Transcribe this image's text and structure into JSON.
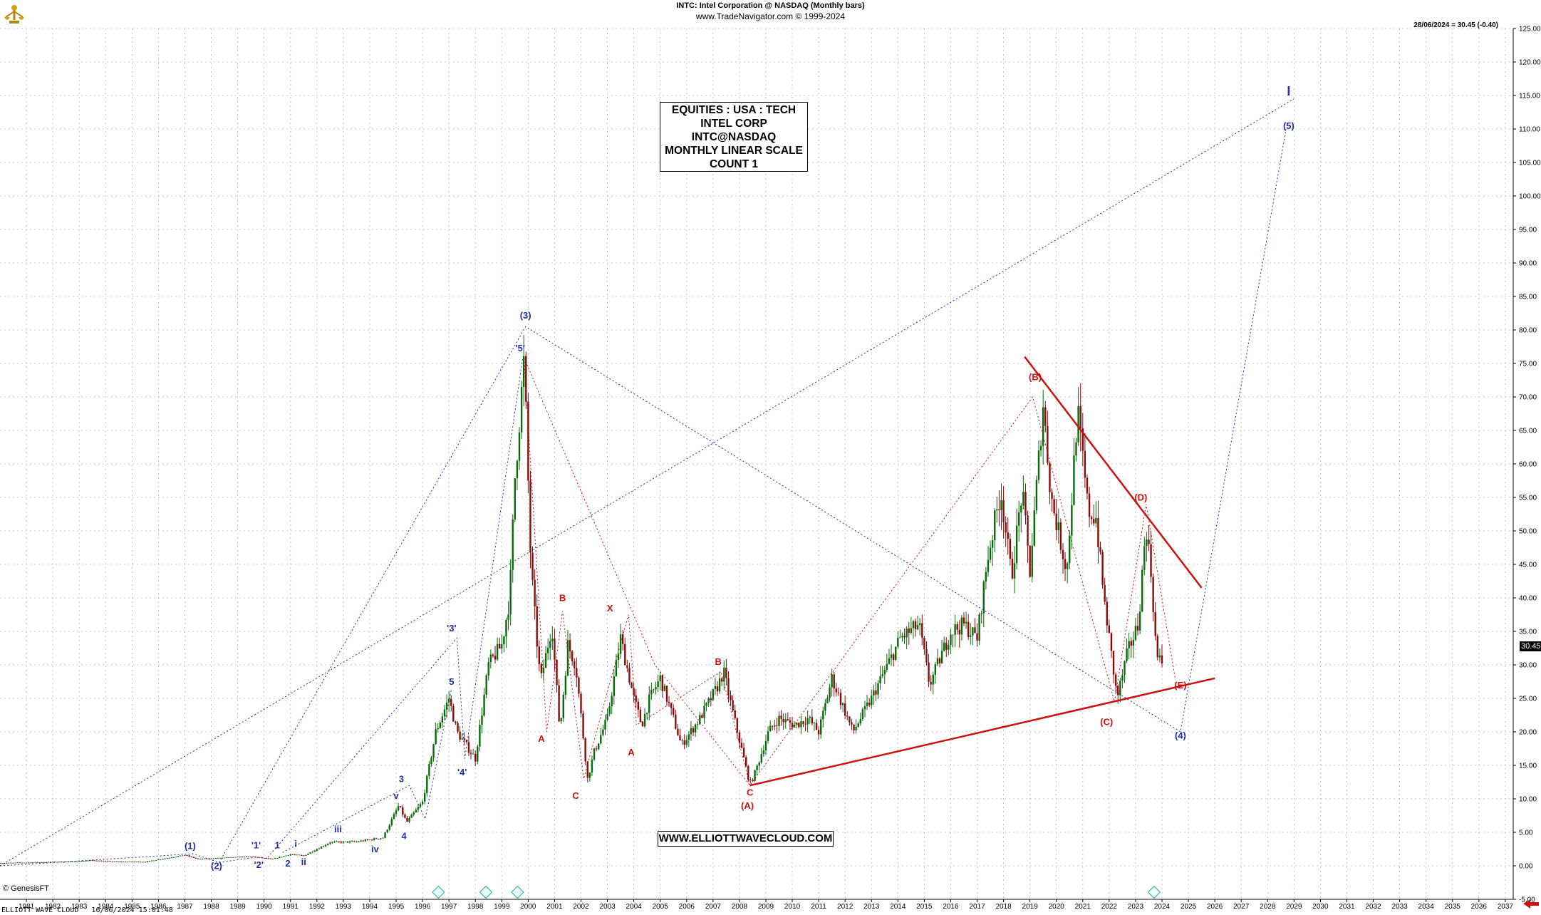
{
  "header": {
    "title": "INTC:  Intel Corporation @ NASDAQ  (Monthly bars)",
    "source": "www.TradeNavigator.com © 1999-2024",
    "last_quote": "28/06/2024 = 30.45 (-0.40)"
  },
  "info_box": {
    "lines": [
      "EQUITIES : USA : TECH",
      "INTEL CORP",
      "INTC@NASDAQ",
      "MONTHLY LINEAR SCALE",
      "COUNT 1"
    ]
  },
  "website": "WWW.ELLIOTTWAVECLOUD.COM",
  "copyright": "© GenesisFT",
  "footer": "ELLIOTT WAVE CLOUD   16/06/2024 15:01:48",
  "price_tag": "30.45",
  "colors": {
    "blue": "#1f2ea6",
    "red": "#cc1111",
    "grid": "#b8b8b8",
    "candle": "#1a1a1a",
    "up": "#0a6a0a",
    "down": "#8a0a0a"
  },
  "chart_data": {
    "type": "line",
    "symbol": "INTC",
    "scale": "linear",
    "x_axis": {
      "range": [
        1980.5,
        2037.8
      ],
      "ticks": [
        "1981",
        "1982",
        "1983",
        "1984",
        "1985",
        "1986",
        "1987",
        "1988",
        "1989",
        "1990",
        "1991",
        "1992",
        "1993",
        "1994",
        "1995",
        "1996",
        "1997",
        "1998",
        "1999",
        "2000",
        "2001",
        "2002",
        "2003",
        "2004",
        "2005",
        "2006",
        "2007",
        "2008",
        "2009",
        "2010",
        "2011",
        "2012",
        "2013",
        "2014",
        "2015",
        "2016",
        "2017",
        "2018",
        "2019",
        "2020",
        "2021",
        "2022",
        "2023",
        "2024",
        "2025",
        "2026",
        "2027",
        "2028",
        "2029",
        "2030",
        "2031",
        "2032",
        "2033",
        "2034",
        "2035",
        "2036",
        "2037"
      ]
    },
    "y_axis": {
      "range": [
        -5,
        125
      ],
      "ticks": [
        "125.00",
        "120.00",
        "115.00",
        "110.00",
        "105.00",
        "100.00",
        "95.00",
        "90.00",
        "85.00",
        "80.00",
        "75.00",
        "70.00",
        "65.00",
        "60.00",
        "55.00",
        "50.00",
        "45.00",
        "40.00",
        "35.00",
        "30.00",
        "25.00",
        "20.00",
        "15.00",
        "10.00",
        "5.00",
        "0.00",
        "-5.00"
      ]
    },
    "grid": true,
    "price_series": {
      "name": "INTC monthly",
      "points": [
        [
          1980.5,
          0.4
        ],
        [
          1983,
          0.6
        ],
        [
          1984,
          0.8
        ],
        [
          1985,
          0.6
        ],
        [
          1986,
          0.6
        ],
        [
          1987.5,
          1.6
        ],
        [
          1988,
          1.0
        ],
        [
          1989,
          1.2
        ],
        [
          1990,
          1.4
        ],
        [
          1990.8,
          1.0
        ],
        [
          1991.5,
          1.7
        ],
        [
          1992,
          1.5
        ],
        [
          1993,
          3.5
        ],
        [
          1994,
          3.6
        ],
        [
          1995,
          4.2
        ],
        [
          1995.6,
          9.0
        ],
        [
          1995.9,
          6.5
        ],
        [
          1996.5,
          9.5
        ],
        [
          1997,
          20
        ],
        [
          1997.5,
          25
        ],
        [
          1997.8,
          20
        ],
        [
          1998.5,
          16
        ],
        [
          1999,
          30
        ],
        [
          1999.5,
          33
        ],
        [
          1999.8,
          40
        ],
        [
          2000.0,
          58
        ],
        [
          2000.35,
          75.8
        ],
        [
          2000.6,
          45
        ],
        [
          2000.9,
          30
        ],
        [
          2001,
          28
        ],
        [
          2001.4,
          36
        ],
        [
          2001.7,
          20
        ],
        [
          2002,
          33
        ],
        [
          2002.3,
          30
        ],
        [
          2002.75,
          13
        ],
        [
          2003,
          17
        ],
        [
          2003.5,
          22
        ],
        [
          2004.0,
          34
        ],
        [
          2004.5,
          25
        ],
        [
          2004.8,
          21
        ],
        [
          2005.1,
          25
        ],
        [
          2005.5,
          28
        ],
        [
          2006.0,
          22
        ],
        [
          2006.3,
          18
        ],
        [
          2007.0,
          22
        ],
        [
          2007.7,
          27
        ],
        [
          2007.9,
          29
        ],
        [
          2008.3,
          22
        ],
        [
          2008.9,
          12.2
        ],
        [
          2009.1,
          14
        ],
        [
          2009.6,
          20
        ],
        [
          2010,
          22
        ],
        [
          2010.6,
          21
        ],
        [
          2011.1,
          22
        ],
        [
          2011.5,
          20
        ],
        [
          2012.0,
          28
        ],
        [
          2012.8,
          20
        ],
        [
          2013.5,
          25
        ],
        [
          2014.6,
          34
        ],
        [
          2015.3,
          36
        ],
        [
          2015.7,
          27
        ],
        [
          2016.5,
          35
        ],
        [
          2017.0,
          36
        ],
        [
          2017.5,
          34
        ],
        [
          2017.9,
          46
        ],
        [
          2018.4,
          56
        ],
        [
          2018.8,
          43
        ],
        [
          2019.2,
          56
        ],
        [
          2019.5,
          44
        ],
        [
          2020.0,
          69
        ],
        [
          2020.3,
          55
        ],
        [
          2020.9,
          44
        ],
        [
          2021.3,
          68
        ],
        [
          2021.7,
          53
        ],
        [
          2022.0,
          52
        ],
        [
          2022.3,
          40
        ],
        [
          2022.8,
          25
        ],
        [
          2023.2,
          32
        ],
        [
          2023.6,
          36
        ],
        [
          2023.9,
          51
        ],
        [
          2024.1,
          43
        ],
        [
          2024.3,
          31
        ],
        [
          2024.5,
          30.45
        ]
      ]
    },
    "trendlines": [
      {
        "color": "red",
        "style": "solid",
        "points": [
          [
            2008.9,
            12
          ],
          [
            2026.5,
            28
          ]
        ]
      },
      {
        "color": "red",
        "style": "solid",
        "points": [
          [
            2019.3,
            76
          ],
          [
            2026.0,
            41.5
          ]
        ]
      }
    ],
    "wave_paths": [
      {
        "color": "blue",
        "style": "dotted",
        "points": [
          [
            1980.5,
            0
          ],
          [
            1987.8,
            1.8
          ],
          [
            1988.8,
            0.5
          ],
          [
            2000.4,
            80.5
          ],
          [
            2025.2,
            20
          ],
          [
            2029.2,
            110
          ]
        ]
      },
      {
        "color": "blue",
        "style": "dotted",
        "points": [
          [
            1988.8,
            0.5
          ],
          [
            1990.2,
            1.3
          ],
          [
            1990.6,
            1.1
          ],
          [
            1997.8,
            34
          ],
          [
            1998.1,
            16
          ],
          [
            2000.3,
            76
          ]
        ]
      },
      {
        "color": "blue",
        "style": "dotted",
        "points": [
          [
            1980.5,
            0
          ],
          [
            2029.5,
            114.5
          ]
        ]
      },
      {
        "color": "blue",
        "style": "dotted",
        "points": [
          [
            1991.2,
            2.0
          ],
          [
            1996.0,
            12
          ],
          [
            1996.6,
            7.0
          ],
          [
            1997.6,
            26.5
          ]
        ]
      },
      {
        "color": "red",
        "style": "dotted",
        "points": [
          [
            2000.35,
            75.8
          ],
          [
            2001.2,
            20
          ],
          [
            2001.8,
            38
          ],
          [
            2002.6,
            13
          ],
          [
            2004.3,
            37.5
          ],
          [
            2004.6,
            21
          ],
          [
            2007.8,
            29
          ],
          [
            2008.9,
            12
          ],
          [
            2019.6,
            70
          ],
          [
            2022.7,
            24.5
          ],
          [
            2023.9,
            54
          ],
          [
            2025.0,
            28
          ]
        ]
      },
      {
        "color": "red",
        "style": "dotted",
        "points": [
          [
            2000.35,
            75.8
          ],
          [
            2005.3,
            30
          ],
          [
            2008.9,
            12
          ]
        ]
      }
    ],
    "annotations": [
      {
        "text": "(1)",
        "x": 1987.7,
        "y": 2.5,
        "color": "blue"
      },
      {
        "text": "(2)",
        "x": 1988.7,
        "y": -0.5,
        "color": "blue"
      },
      {
        "text": "'1'",
        "x": 1990.2,
        "y": 2.6,
        "color": "blue"
      },
      {
        "text": "'2'",
        "x": 1990.3,
        "y": -0.3,
        "color": "blue"
      },
      {
        "text": "1",
        "x": 1991.0,
        "y": 2.6,
        "color": "blue"
      },
      {
        "text": "2",
        "x": 1991.4,
        "y": -0.1,
        "color": "blue"
      },
      {
        "text": "i",
        "x": 1991.7,
        "y": 2.8,
        "color": "blue"
      },
      {
        "text": "ii",
        "x": 1992.0,
        "y": 0.1,
        "color": "blue"
      },
      {
        "text": "iii",
        "x": 1993.3,
        "y": 5.0,
        "color": "blue"
      },
      {
        "text": "iv",
        "x": 1994.7,
        "y": 2.0,
        "color": "blue"
      },
      {
        "text": "v",
        "x": 1995.5,
        "y": 10.0,
        "color": "blue"
      },
      {
        "text": "3",
        "x": 1995.7,
        "y": 12.5,
        "color": "blue"
      },
      {
        "text": "4",
        "x": 1995.8,
        "y": 4.0,
        "color": "blue"
      },
      {
        "text": "5",
        "x": 1997.6,
        "y": 27.0,
        "color": "blue"
      },
      {
        "text": "'3'",
        "x": 1997.6,
        "y": 35.0,
        "color": "blue"
      },
      {
        "text": "'4'",
        "x": 1998.0,
        "y": 13.5,
        "color": "blue"
      },
      {
        "text": "'5'",
        "x": 2000.2,
        "y": 76.8,
        "color": "blue"
      },
      {
        "text": "(3)",
        "x": 2000.4,
        "y": 81.7,
        "color": "blue"
      },
      {
        "text": "A",
        "x": 2001.0,
        "y": 18.5,
        "color": "red"
      },
      {
        "text": "B",
        "x": 2001.8,
        "y": 39.5,
        "color": "red"
      },
      {
        "text": "C",
        "x": 2002.3,
        "y": 10.0,
        "color": "red"
      },
      {
        "text": "X",
        "x": 2003.6,
        "y": 38.0,
        "color": "red"
      },
      {
        "text": "A",
        "x": 2004.4,
        "y": 16.5,
        "color": "red"
      },
      {
        "text": "B",
        "x": 2007.7,
        "y": 30.0,
        "color": "red"
      },
      {
        "text": "C",
        "x": 2008.9,
        "y": 10.5,
        "color": "red"
      },
      {
        "text": "(A)",
        "x": 2008.8,
        "y": 8.5,
        "color": "red"
      },
      {
        "text": "(B)",
        "x": 2019.7,
        "y": 72.5,
        "color": "red"
      },
      {
        "text": "(C)",
        "x": 2022.4,
        "y": 21.0,
        "color": "red"
      },
      {
        "text": "(D)",
        "x": 2023.7,
        "y": 54.5,
        "color": "red"
      },
      {
        "text": "(E)",
        "x": 2025.2,
        "y": 26.5,
        "color": "red"
      },
      {
        "text": "(4)",
        "x": 2025.2,
        "y": 19.0,
        "color": "blue"
      },
      {
        "text": "(5)",
        "x": 2029.3,
        "y": 110.0,
        "color": "blue"
      },
      {
        "text": "I",
        "x": 2029.3,
        "y": 115.0,
        "color": "blue"
      }
    ]
  }
}
